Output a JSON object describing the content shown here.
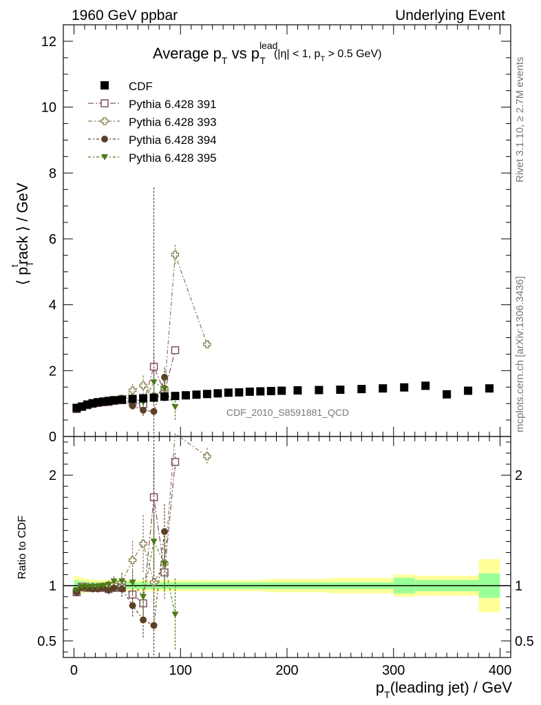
{
  "header": {
    "left": "1960 GeV ppbar",
    "right": "Underlying Event"
  },
  "plot_title": {
    "main": "Average p",
    "sub_t": "T",
    "vs": " vs p",
    "sup_lead": "lead",
    "sub_t2": "T",
    "cut": "(|η| < 1, p",
    "sub_t3": "T",
    "cut_end": " > 0.5 GeV)"
  },
  "side_labels": {
    "rivet": "Rivet 3.1.10, ≥ 2.7M events",
    "mcplots": "mcplots.cern.ch [arXiv:1306.3436]"
  },
  "watermark": "CDF_2010_S8591881_QCD",
  "axes": {
    "ylabel_main_left": "⟨ p",
    "ylabel_main_sup": "t",
    "ylabel_main_sub": "T",
    "ylabel_main_right": "rack ⟩ / GeV",
    "ylabel_ratio": "Ratio to CDF",
    "xlabel_left": "p",
    "xlabel_sub": "T",
    "xlabel_right": "(leading jet) / GeV"
  },
  "colors": {
    "cdf": "#000000",
    "p391": "#7f4f66",
    "p393": "#857a4a",
    "p394": "#5c4128",
    "p395": "#4c7a18",
    "band_yellow": "#ffff99",
    "band_green": "#99ff99"
  },
  "chart_data": {
    "type": "scatter",
    "x_range": [
      -10,
      410
    ],
    "main_ylim": [
      0,
      12.5
    ],
    "ratio_ylim": [
      0.35,
      2.35
    ],
    "x_ticks": [
      0,
      100,
      200,
      300,
      400
    ],
    "main_y_ticks": [
      0,
      2,
      4,
      6,
      8,
      10,
      12
    ],
    "ratio_y_ticks": [
      0.5,
      1,
      2
    ],
    "legend_position": "top-left",
    "series": [
      {
        "name": "CDF",
        "marker": "square-filled",
        "x": [
          2.5,
          7.5,
          12.5,
          17.5,
          22.5,
          27.5,
          32.5,
          37.5,
          45,
          55,
          65,
          75,
          85,
          95,
          105,
          115,
          125,
          135,
          145,
          155,
          165,
          175,
          185,
          195,
          210,
          230,
          250,
          270,
          290,
          310,
          330,
          350,
          370,
          390
        ],
        "y": [
          0.87,
          0.91,
          0.97,
          1.01,
          1.04,
          1.06,
          1.08,
          1.1,
          1.12,
          1.14,
          1.16,
          1.18,
          1.21,
          1.23,
          1.25,
          1.27,
          1.29,
          1.31,
          1.33,
          1.34,
          1.36,
          1.37,
          1.38,
          1.39,
          1.4,
          1.41,
          1.42,
          1.44,
          1.46,
          1.49,
          1.54,
          1.28,
          1.39,
          1.46
        ],
        "ratio_band_green": [
          0.05,
          0.04,
          0.035,
          0.03,
          0.03,
          0.03,
          0.03,
          0.03,
          0.03,
          0.03,
          0.03,
          0.03,
          0.03,
          0.03,
          0.03,
          0.03,
          0.03,
          0.03,
          0.03,
          0.03,
          0.03,
          0.03,
          0.03,
          0.03,
          0.03,
          0.03,
          0.03,
          0.03,
          0.03,
          0.07,
          0.05,
          0.05,
          0.05,
          0.11
        ],
        "ratio_band_yellow": [
          0.09,
          0.07,
          0.06,
          0.055,
          0.05,
          0.05,
          0.05,
          0.05,
          0.05,
          0.05,
          0.05,
          0.05,
          0.05,
          0.05,
          0.05,
          0.05,
          0.05,
          0.05,
          0.05,
          0.05,
          0.05,
          0.05,
          0.06,
          0.06,
          0.06,
          0.06,
          0.07,
          0.07,
          0.07,
          0.1,
          0.09,
          0.09,
          0.09,
          0.24
        ]
      },
      {
        "name": "Pythia 6.428 391",
        "marker": "square-open",
        "x": [
          2.5,
          7.5,
          12.5,
          17.5,
          22.5,
          27.5,
          32.5,
          37.5,
          45,
          55,
          65,
          75,
          85,
          95
        ],
        "y": [
          0.83,
          0.9,
          0.95,
          0.99,
          1.02,
          1.04,
          1.05,
          1.08,
          1.1,
          1.05,
          0.98,
          2.12,
          1.35,
          2.62
        ],
        "yerr": [
          0.02,
          0.02,
          0.02,
          0.03,
          0.03,
          0.03,
          0.04,
          0.04,
          0.06,
          0.1,
          0.15,
          0.4,
          0.3,
          0.1
        ],
        "ratio": [
          0.94,
          0.99,
          0.98,
          0.98,
          0.98,
          0.98,
          0.97,
          0.98,
          0.98,
          0.92,
          0.84,
          1.8,
          1.12,
          2.12
        ]
      },
      {
        "name": "Pythia 6.428 393",
        "marker": "cross-open",
        "x": [
          2.5,
          7.5,
          12.5,
          17.5,
          22.5,
          27.5,
          32.5,
          37.5,
          45,
          55,
          65,
          75,
          85,
          95,
          125
        ],
        "y": [
          0.84,
          0.9,
          0.96,
          1.0,
          1.03,
          1.05,
          1.08,
          1.11,
          1.15,
          1.4,
          1.55,
          1.22,
          1.45,
          5.52,
          2.8
        ],
        "yerr": [
          0.02,
          0.02,
          0.02,
          0.03,
          0.03,
          0.04,
          0.05,
          0.06,
          0.1,
          0.2,
          0.3,
          0.3,
          0.3,
          0.3,
          0.1
        ],
        "ratio": [
          0.95,
          0.99,
          0.99,
          0.99,
          0.99,
          0.99,
          1.0,
          1.01,
          1.03,
          1.23,
          1.38,
          1.03,
          1.2,
          4.49,
          2.17
        ]
      },
      {
        "name": "Pythia 6.428 394",
        "marker": "circle-filled",
        "x": [
          2.5,
          7.5,
          12.5,
          17.5,
          22.5,
          27.5,
          32.5,
          37.5,
          45,
          55,
          65,
          75,
          85
        ],
        "y": [
          0.83,
          0.89,
          0.95,
          0.98,
          1.01,
          1.04,
          1.04,
          1.08,
          1.09,
          0.93,
          0.8,
          0.76,
          1.8
        ],
        "yerr": [
          0.02,
          0.02,
          0.02,
          0.03,
          0.03,
          0.03,
          0.04,
          0.04,
          0.08,
          0.12,
          0.2,
          6.8,
          0.3
        ],
        "ratio": [
          0.94,
          0.98,
          0.98,
          0.97,
          0.97,
          0.98,
          0.96,
          0.98,
          0.97,
          0.82,
          0.69,
          0.64,
          1.49
        ]
      },
      {
        "name": "Pythia 6.428 395",
        "marker": "triangle-down-filled",
        "x": [
          2.5,
          7.5,
          12.5,
          17.5,
          22.5,
          27.5,
          32.5,
          37.5,
          45,
          55,
          65,
          75,
          85,
          95
        ],
        "y": [
          0.84,
          0.9,
          0.96,
          1.0,
          1.03,
          1.06,
          1.09,
          1.14,
          1.16,
          1.17,
          1.04,
          1.65,
          1.45,
          0.9
        ],
        "yerr": [
          0.02,
          0.02,
          0.02,
          0.03,
          0.03,
          0.03,
          0.04,
          0.05,
          0.08,
          0.12,
          0.2,
          0.3,
          0.3,
          0.4
        ],
        "ratio": [
          0.96,
          0.99,
          0.99,
          0.99,
          0.99,
          1.0,
          1.01,
          1.04,
          1.04,
          1.03,
          0.9,
          1.4,
          1.2,
          0.74
        ]
      }
    ]
  }
}
